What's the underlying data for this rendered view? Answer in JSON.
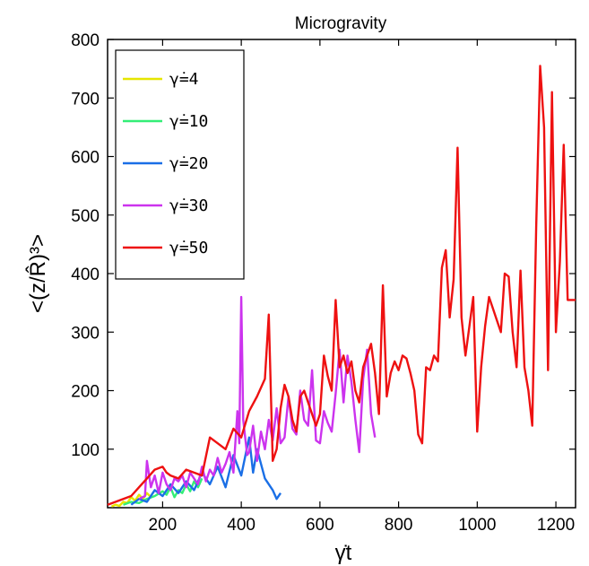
{
  "chart_data": {
    "type": "line",
    "title": "Microgravity",
    "xlabel": "γ̇t",
    "ylabel": "<(z/R̂)³>",
    "xlim": [
      60,
      1250
    ],
    "ylim": [
      0,
      800
    ],
    "xticks": [
      200,
      400,
      600,
      800,
      1000,
      1200
    ],
    "yticks": [
      100,
      200,
      300,
      400,
      500,
      600,
      700,
      800
    ],
    "grid": false,
    "legend_position": "top-left",
    "series": [
      {
        "name": "γ̇=4",
        "color": "#e6e600",
        "x": [
          70,
          80,
          90,
          100,
          110,
          120,
          130,
          140,
          150,
          160,
          170
        ],
        "y": [
          2,
          5,
          3,
          10,
          8,
          18,
          12,
          22,
          15,
          25,
          18
        ]
      },
      {
        "name": "γ̇=10",
        "color": "#33ee77",
        "x": [
          100,
          120,
          140,
          160,
          180,
          200,
          210,
          220,
          230,
          240,
          250,
          260,
          270,
          280,
          290,
          300
        ],
        "y": [
          5,
          10,
          8,
          15,
          20,
          28,
          22,
          35,
          18,
          30,
          25,
          40,
          28,
          45,
          35,
          50
        ]
      },
      {
        "name": "γ̇=20",
        "color": "#1a6fe6",
        "x": [
          120,
          140,
          160,
          180,
          200,
          220,
          240,
          260,
          280,
          300,
          320,
          340,
          360,
          380,
          400,
          420,
          430,
          440,
          460,
          480,
          490,
          500
        ],
        "y": [
          5,
          15,
          10,
          30,
          20,
          40,
          25,
          45,
          30,
          60,
          40,
          70,
          35,
          90,
          55,
          120,
          60,
          100,
          50,
          30,
          15,
          25
        ]
      },
      {
        "name": "γ̇=30",
        "color": "#cc33ee",
        "x": [
          140,
          155,
          160,
          170,
          180,
          190,
          200,
          210,
          220,
          230,
          240,
          250,
          260,
          270,
          280,
          290,
          300,
          310,
          320,
          330,
          340,
          350,
          360,
          370,
          380,
          390,
          395,
          400,
          405,
          410,
          415,
          420,
          430,
          440,
          450,
          460,
          470,
          480,
          490,
          500,
          510,
          520,
          530,
          540,
          550,
          560,
          570,
          580,
          590,
          600,
          610,
          620,
          630,
          640,
          650,
          660,
          670,
          680,
          690,
          700,
          710,
          720,
          730,
          740
        ],
        "y": [
          15,
          20,
          80,
          35,
          55,
          25,
          60,
          40,
          30,
          50,
          45,
          55,
          35,
          60,
          50,
          40,
          70,
          45,
          65,
          55,
          85,
          60,
          75,
          95,
          60,
          165,
          110,
          360,
          150,
          120,
          90,
          95,
          140,
          80,
          130,
          100,
          150,
          115,
          170,
          110,
          120,
          190,
          135,
          125,
          200,
          150,
          140,
          235,
          115,
          110,
          165,
          145,
          130,
          195,
          270,
          180,
          260,
          215,
          150,
          95,
          220,
          270,
          160,
          120
        ]
      },
      {
        "name": "γ̇=50",
        "color": "#ee1111",
        "x": [
          60,
          80,
          100,
          120,
          140,
          160,
          180,
          200,
          210,
          220,
          240,
          260,
          280,
          300,
          320,
          340,
          360,
          380,
          400,
          420,
          440,
          460,
          470,
          480,
          490,
          500,
          510,
          520,
          530,
          540,
          550,
          560,
          570,
          580,
          590,
          600,
          610,
          620,
          630,
          640,
          650,
          660,
          670,
          680,
          690,
          700,
          710,
          720,
          730,
          740,
          750,
          760,
          770,
          780,
          790,
          800,
          810,
          820,
          830,
          840,
          850,
          860,
          870,
          880,
          890,
          900,
          910,
          920,
          930,
          940,
          950,
          960,
          970,
          980,
          990,
          1000,
          1010,
          1020,
          1030,
          1040,
          1050,
          1060,
          1070,
          1080,
          1090,
          1100,
          1110,
          1120,
          1130,
          1140,
          1150,
          1160,
          1170,
          1180,
          1190,
          1200,
          1210,
          1220,
          1230,
          1240,
          1250
        ],
        "y": [
          5,
          10,
          15,
          20,
          35,
          50,
          65,
          70,
          60,
          55,
          50,
          65,
          60,
          55,
          120,
          110,
          100,
          135,
          120,
          165,
          190,
          220,
          330,
          80,
          100,
          170,
          210,
          190,
          150,
          130,
          190,
          200,
          180,
          160,
          140,
          160,
          260,
          225,
          200,
          355,
          240,
          260,
          230,
          250,
          200,
          180,
          240,
          260,
          280,
          230,
          160,
          380,
          190,
          230,
          250,
          235,
          260,
          255,
          230,
          200,
          125,
          110,
          240,
          235,
          260,
          250,
          410,
          440,
          325,
          390,
          615,
          325,
          260,
          310,
          360,
          130,
          240,
          310,
          360,
          340,
          320,
          300,
          400,
          395,
          300,
          240,
          405,
          240,
          200,
          140,
          480,
          755,
          650,
          235,
          710,
          300,
          420,
          620,
          355,
          355,
          355
        ]
      }
    ]
  }
}
